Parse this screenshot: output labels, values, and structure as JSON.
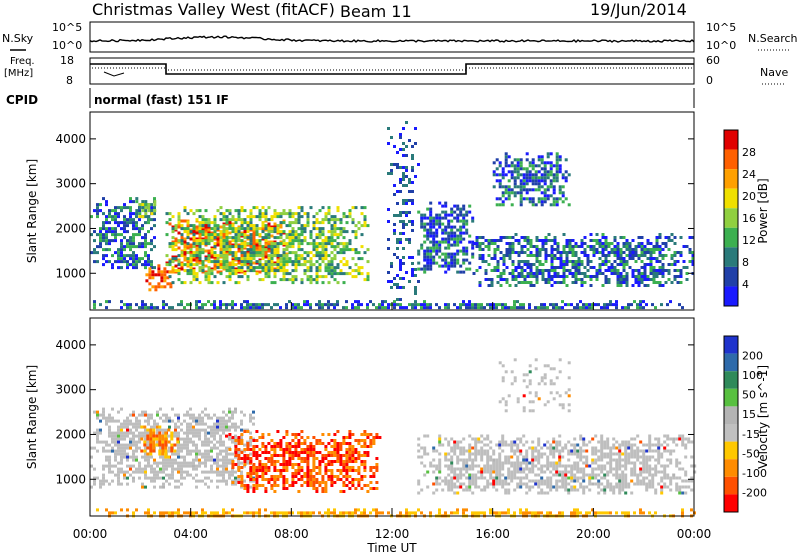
{
  "header": {
    "site_title": "Christmas Valley West (fitACF)",
    "beam": "Beam 11",
    "date": "19/Jun/2014"
  },
  "status_panel": {
    "nsky_label": "N.Sky",
    "nsky_ticks": [
      "10^5",
      "10^0"
    ],
    "nsearch_label": "N.Search",
    "nsearch_ticks": [
      "10^5",
      "10^0"
    ],
    "freq_label": "Freq.",
    "freq_unit": "[MHz]",
    "freq_ticks": [
      "18",
      "8"
    ],
    "nave_label": "Nave",
    "nave_ticks": [
      "60",
      "0"
    ],
    "cpid_label": "CPID",
    "cpid_value": "normal (fast) 151 IF"
  },
  "colors": {
    "power": [
      "#1a1aff",
      "#2040a8",
      "#2a7a7a",
      "#3cb050",
      "#90d040",
      "#f0e000",
      "#ffa000",
      "#ff6000",
      "#e00000"
    ],
    "velocity": [
      "#1f33cc",
      "#2e6aaa",
      "#2f8a5a",
      "#58c040",
      "#b4b4b4",
      "#c0c0c0",
      "#ffc800",
      "#ff8c00",
      "#ff5000",
      "#ff0000"
    ],
    "ground_scatter": "#bebebe"
  },
  "chart_data": [
    {
      "type": "heatmap",
      "panel": "power",
      "ylabel": "Slant Range [km]",
      "colorbar_label": "Power [dB]",
      "colorbar_ticks": [
        "28",
        "24",
        "20",
        "16",
        "12",
        "8",
        "4"
      ],
      "xlim_hours": [
        0,
        24
      ],
      "ylim_km": [
        180,
        4600
      ],
      "yticks": [
        "4000",
        "3000",
        "2000",
        "1000"
      ],
      "scatter_regions": [
        {
          "t0": 0.0,
          "t1": 2.6,
          "r0": 1100,
          "r1": 2700,
          "level": "low"
        },
        {
          "t0": 1.8,
          "t1": 2.6,
          "r0": 2200,
          "r1": 2700,
          "level": "mid"
        },
        {
          "t0": 2.2,
          "t1": 3.2,
          "r0": 600,
          "r1": 1200,
          "level": "high"
        },
        {
          "t0": 3.0,
          "t1": 7.8,
          "r0": 1000,
          "r1": 2200,
          "level": "high"
        },
        {
          "t0": 3.0,
          "t1": 11.0,
          "r0": 800,
          "r1": 2500,
          "level": "mid"
        },
        {
          "t0": 0.0,
          "t1": 24.0,
          "r0": 200,
          "r1": 400,
          "level": "low"
        },
        {
          "t0": 11.8,
          "t1": 13.0,
          "r0": 400,
          "r1": 4400,
          "level": "sparse"
        },
        {
          "t0": 13.0,
          "t1": 15.2,
          "r0": 1000,
          "r1": 2600,
          "level": "low"
        },
        {
          "t0": 15.2,
          "t1": 24.0,
          "r0": 700,
          "r1": 1900,
          "level": "low"
        },
        {
          "t0": 16.0,
          "t1": 19.0,
          "r0": 2500,
          "r1": 3700,
          "level": "low"
        }
      ]
    },
    {
      "type": "heatmap",
      "panel": "velocity",
      "ylabel": "Slant Range [km]",
      "colorbar_label": "Velocity [m s^-1]",
      "colorbar_ticks": [
        "200",
        "100",
        "50",
        "15",
        "-15",
        "-50",
        "-100",
        "-200"
      ],
      "xlabel": "Time UT",
      "xticks": [
        "00:00",
        "04:00",
        "08:00",
        "12:00",
        "16:00",
        "20:00",
        "00:00"
      ],
      "xlim_hours": [
        0,
        24
      ],
      "ylim_km": [
        180,
        4600
      ],
      "yticks": [
        "4000",
        "3000",
        "2000",
        "1000"
      ],
      "scatter_regions": [
        {
          "t0": 0.0,
          "t1": 6.5,
          "r0": 800,
          "r1": 2600,
          "level": "ground"
        },
        {
          "t0": 2.0,
          "t1": 3.5,
          "r0": 1500,
          "r1": 2200,
          "level": "neg_mid"
        },
        {
          "t0": 5.5,
          "t1": 11.5,
          "r0": 700,
          "r1": 2100,
          "level": "neg_high"
        },
        {
          "t0": 0.0,
          "t1": 24.0,
          "r0": 200,
          "r1": 350,
          "level": "neg_low"
        },
        {
          "t0": 13.0,
          "t1": 24.0,
          "r0": 700,
          "r1": 2000,
          "level": "ground"
        },
        {
          "t0": 16.0,
          "t1": 19.0,
          "r0": 2500,
          "r1": 3700,
          "level": "ground_sparse"
        }
      ]
    }
  ]
}
